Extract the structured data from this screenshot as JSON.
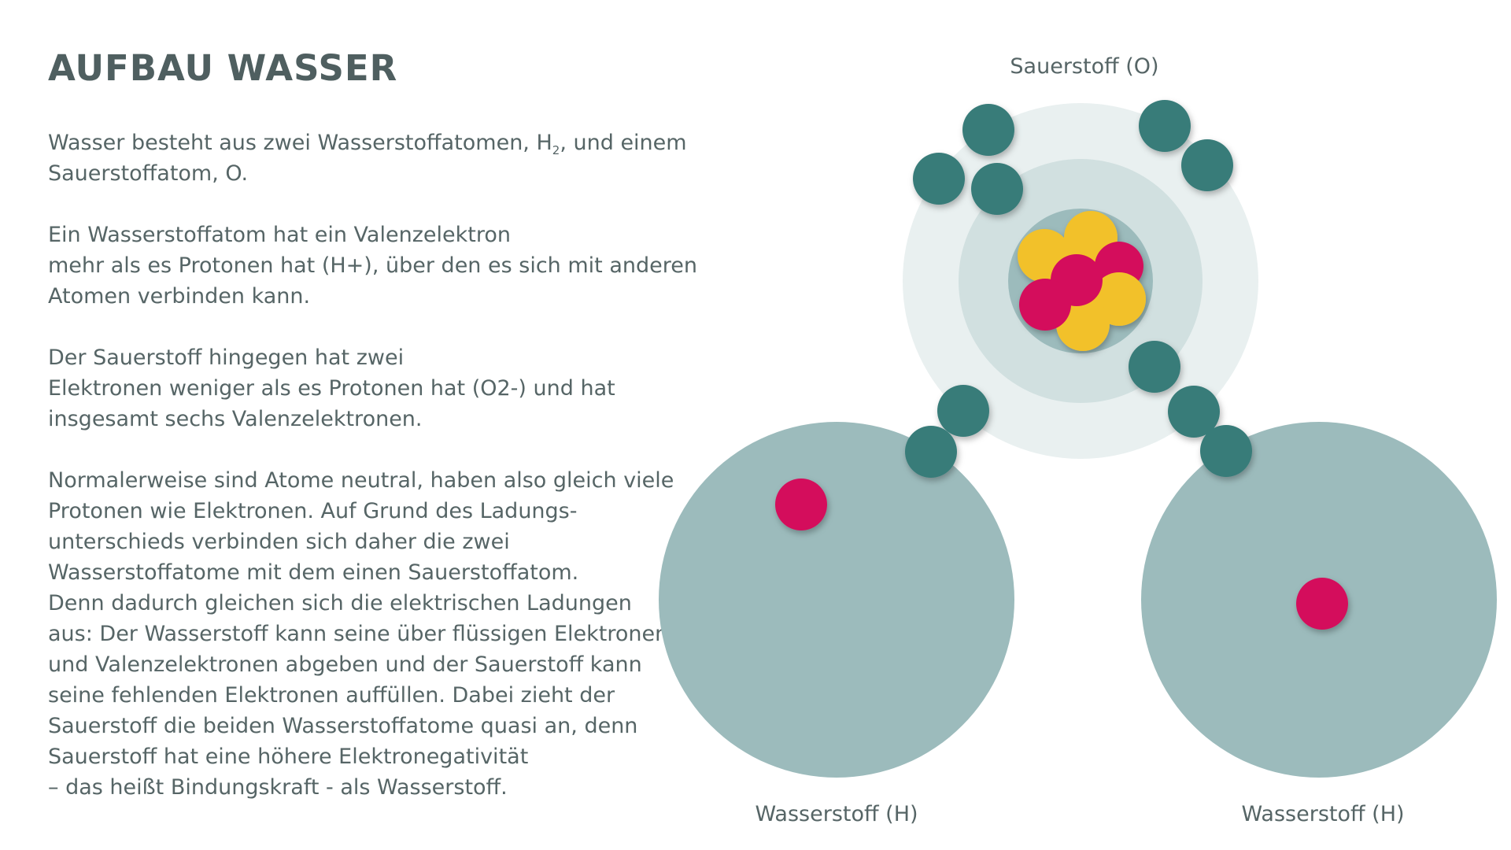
{
  "title": "AUFBAU WASSER",
  "paragraphs": [
    {
      "lines": [
        {
          "pre": "Wasser besteht aus zwei Wasserstoffatomen, H",
          "sub": "2",
          "post": ", und einem"
        },
        {
          "text": "Sauerstoffatom, O."
        }
      ]
    },
    {
      "lines": [
        {
          "text": "Ein Wasserstoffatom hat ein Valenzelektron"
        },
        {
          "text": "mehr als es Protonen hat (H+), über den es sich mit anderen"
        },
        {
          "text": "Atomen verbinden kann."
        }
      ]
    },
    {
      "lines": [
        {
          "text": "Der Sauerstoff  hingegen hat zwei"
        },
        {
          "text": "Elektronen weniger als es Protonen hat (O2-) und hat"
        },
        {
          "text": "insgesamt sechs Valenzelektronen."
        }
      ]
    },
    {
      "lines": [
        {
          "text": "Normalerweise sind Atome neutral, haben also gleich viele"
        },
        {
          "text": "Protonen wie Elektronen. Auf Grund des Ladungs-"
        },
        {
          "text": "unterschieds verbinden sich daher die zwei"
        },
        {
          "text": "Wasserstoffatome mit dem einen Sauerstoffatom."
        },
        {
          "text": "Denn dadurch gleichen sich die elektrischen Ladungen"
        },
        {
          "text": "aus: Der Wasserstoff kann seine über flüssigen Elektronen"
        },
        {
          "text": "und Valenzelektronen abgeben und der Sauerstoff kann"
        },
        {
          "text": "seine fehlenden Elektronen auffüllen. Dabei zieht der"
        },
        {
          "text": "Sauerstoff die beiden Wasserstoffatome quasi an, denn"
        },
        {
          "text": "Sauerstoff hat eine höhere Elektronegativität"
        },
        {
          "text": "– das heißt Bindungskraft -  als Wasserstoff."
        }
      ]
    }
  ],
  "diagram": {
    "oxygen_label": "Sauerstoff (O)",
    "hydrogen_left_label": "Wasserstoff (H)",
    "hydrogen_right_label": "Wasserstoff (H)",
    "colors": {
      "hydrogen_shell": "#9cbbbc",
      "oxygen_outer_shell": "#e9f0f0",
      "oxygen_middle_shell": "#d1e0e0",
      "oxygen_nucleus_bg": "#9cbbbc",
      "electron": "#387b79",
      "proton": "#d40f5b",
      "neutron": "#f2c12a"
    }
  }
}
